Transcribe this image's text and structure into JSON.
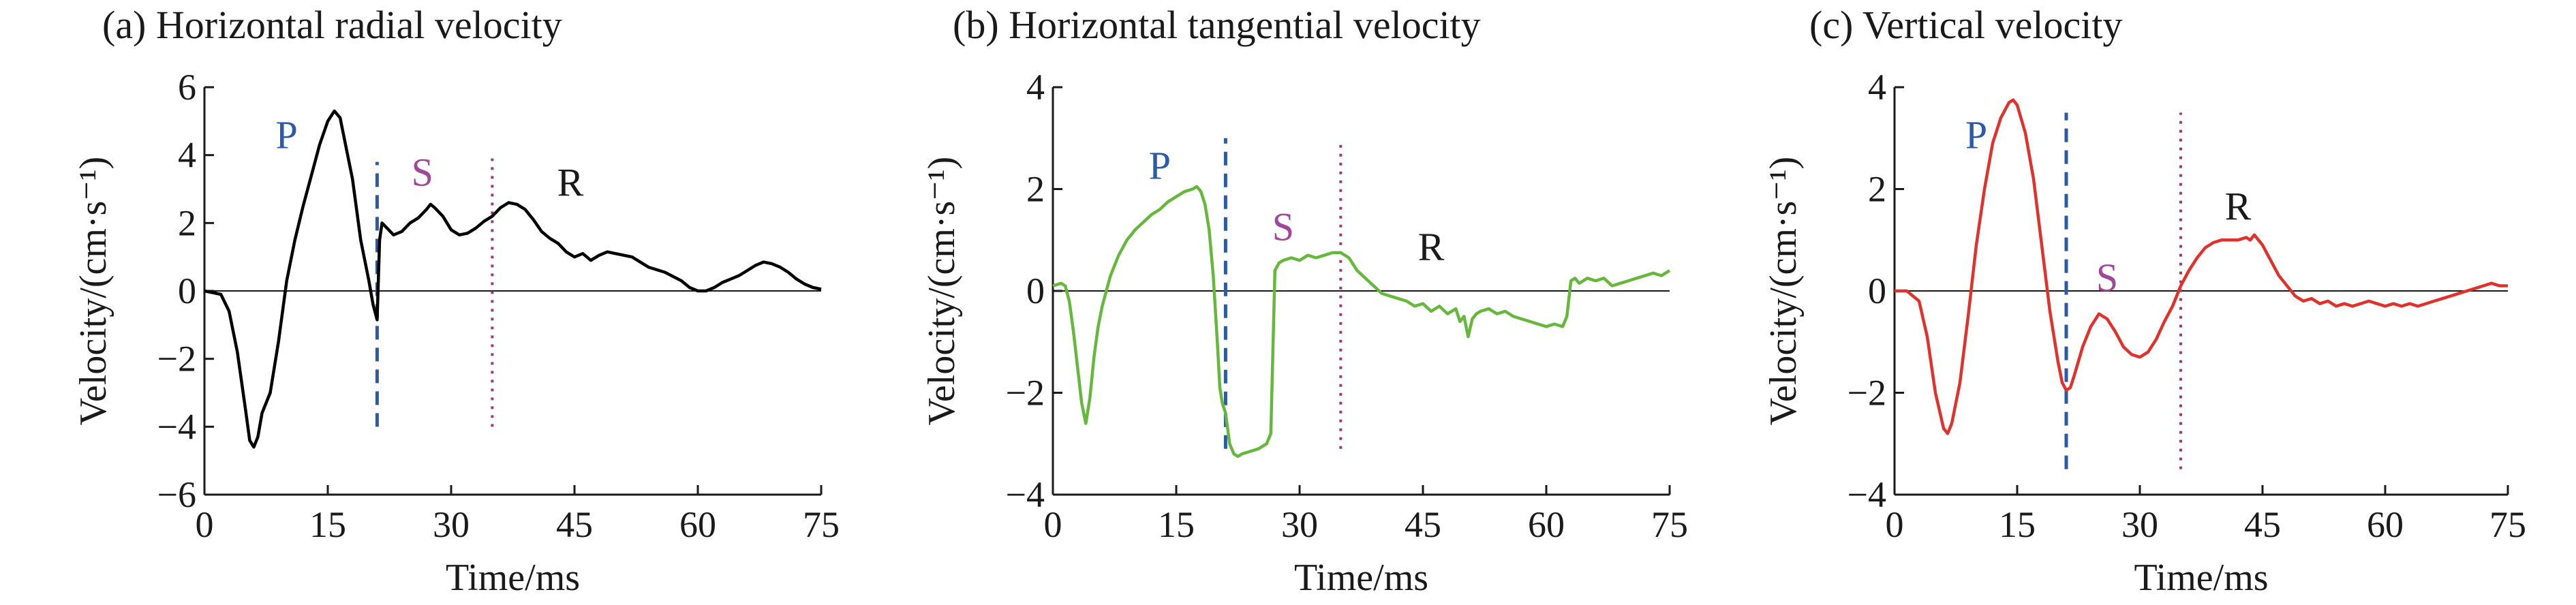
{
  "chart_data": [
    {
      "type": "line",
      "title": "(a) Horizontal radial velocity",
      "xlabel": "Time/ms",
      "ylabel": "Velocity/(cm·s⁻¹)",
      "xlim": [
        0,
        75
      ],
      "ylim": [
        -6,
        6
      ],
      "xticks": [
        0,
        15,
        30,
        45,
        60,
        75
      ],
      "yticks": [
        -6,
        -4,
        -2,
        0,
        2,
        4,
        6
      ],
      "grid": false,
      "color": "#000000",
      "series": [
        {
          "x": [
            0,
            2,
            3,
            4,
            5,
            5.5,
            6,
            6.5,
            7,
            8,
            9,
            10,
            11,
            12,
            13,
            14,
            15,
            15.8,
            16.5,
            17,
            18,
            19,
            20,
            20.5,
            21,
            21.3,
            21.6,
            22,
            23,
            24,
            25,
            26,
            27,
            27.5,
            28,
            29,
            30,
            31,
            32,
            33,
            34,
            35,
            36,
            37,
            38,
            39,
            40,
            41,
            42,
            43,
            44,
            45,
            46,
            47,
            48,
            49,
            50,
            52,
            54,
            56,
            58,
            59,
            60,
            61,
            62,
            63,
            64,
            65,
            66,
            67,
            68,
            69,
            70,
            71,
            72,
            73,
            74,
            75
          ],
          "y": [
            0,
            -0.1,
            -0.6,
            -1.8,
            -3.5,
            -4.4,
            -4.6,
            -4.3,
            -3.6,
            -3.0,
            -1.5,
            0.3,
            1.5,
            2.5,
            3.4,
            4.3,
            5.0,
            5.3,
            5.1,
            4.5,
            3.3,
            1.5,
            0.3,
            -0.4,
            -0.85,
            1.5,
            2.0,
            1.9,
            1.65,
            1.75,
            2.0,
            2.15,
            2.4,
            2.55,
            2.45,
            2.2,
            1.8,
            1.65,
            1.7,
            1.85,
            2.05,
            2.2,
            2.45,
            2.6,
            2.55,
            2.4,
            2.1,
            1.75,
            1.55,
            1.4,
            1.15,
            1.0,
            1.1,
            0.9,
            1.05,
            1.15,
            1.1,
            1.0,
            0.7,
            0.55,
            0.3,
            0.1,
            0.0,
            0.0,
            0.1,
            0.25,
            0.35,
            0.45,
            0.6,
            0.75,
            0.85,
            0.8,
            0.7,
            0.55,
            0.35,
            0.2,
            0.1,
            0.05
          ]
        }
      ],
      "wave_labels": [
        {
          "text": "P",
          "x": 10,
          "y": 4.2,
          "color": "#2b5aa6"
        },
        {
          "text": "S",
          "x": 26.5,
          "y": 3.1,
          "color": "#a0479a"
        },
        {
          "text": "R",
          "x": 44.5,
          "y": 2.8,
          "color": "#1a1a1a"
        }
      ],
      "markers": [
        {
          "x": 21,
          "y0": -4.0,
          "y1": 3.8,
          "style": "dashed",
          "color": "#2b5aa6"
        },
        {
          "x": 35,
          "y0": -4.0,
          "y1": 3.9,
          "style": "dotted",
          "color": "#a03a6a"
        }
      ]
    },
    {
      "type": "line",
      "title": "(b) Horizontal tangential velocity",
      "xlabel": "Time/ms",
      "ylabel": "Velocity/(cm·s⁻¹)",
      "xlim": [
        0,
        75
      ],
      "ylim": [
        -4,
        4
      ],
      "xticks": [
        0,
        15,
        30,
        45,
        60,
        75
      ],
      "yticks": [
        -4,
        -2,
        0,
        2,
        4
      ],
      "grid": false,
      "color": "#66b83c",
      "series": [
        {
          "x": [
            0,
            1,
            1.5,
            2,
            2.5,
            3,
            3.5,
            4,
            4.5,
            5,
            5.5,
            6,
            6.5,
            7,
            8,
            9,
            10,
            11,
            12,
            13,
            14,
            15,
            16,
            17,
            17.5,
            18,
            18.5,
            19,
            19.5,
            20,
            20.3,
            20.6,
            21,
            21.5,
            22,
            22.5,
            23,
            24,
            25,
            26,
            26.5,
            27,
            27.5,
            28,
            29,
            30,
            31,
            32,
            33,
            34,
            35,
            36,
            37,
            38,
            39,
            40,
            41,
            42,
            43,
            44,
            45,
            46,
            47,
            48,
            49,
            49.5,
            50,
            50.5,
            51,
            51.5,
            52,
            53,
            54,
            55,
            56,
            57,
            58,
            59,
            60,
            61,
            62,
            62.5,
            63,
            63.5,
            64,
            65,
            66,
            67,
            68,
            69,
            70,
            71,
            72,
            73,
            74,
            75
          ],
          "y": [
            0.1,
            0.15,
            0.1,
            -0.2,
            -0.8,
            -1.5,
            -2.2,
            -2.6,
            -2.1,
            -1.3,
            -0.7,
            -0.3,
            0.0,
            0.3,
            0.7,
            1.0,
            1.2,
            1.35,
            1.5,
            1.6,
            1.75,
            1.85,
            1.95,
            2.0,
            2.05,
            1.95,
            1.7,
            1.2,
            0.3,
            -1.0,
            -1.9,
            -2.2,
            -2.4,
            -3.0,
            -3.2,
            -3.25,
            -3.2,
            -3.15,
            -3.1,
            -3.0,
            -2.8,
            0.4,
            0.55,
            0.6,
            0.65,
            0.6,
            0.7,
            0.65,
            0.7,
            0.75,
            0.75,
            0.65,
            0.4,
            0.25,
            0.1,
            -0.05,
            -0.1,
            -0.15,
            -0.2,
            -0.3,
            -0.25,
            -0.4,
            -0.3,
            -0.45,
            -0.35,
            -0.6,
            -0.5,
            -0.9,
            -0.55,
            -0.45,
            -0.4,
            -0.35,
            -0.45,
            -0.4,
            -0.5,
            -0.55,
            -0.6,
            -0.65,
            -0.7,
            -0.65,
            -0.7,
            -0.5,
            0.2,
            0.25,
            0.15,
            0.25,
            0.2,
            0.25,
            0.1,
            0.15,
            0.2,
            0.25,
            0.3,
            0.35,
            0.3,
            0.4
          ]
        }
      ],
      "wave_labels": [
        {
          "text": "P",
          "x": 13,
          "y": 2.2,
          "color": "#2b5aa6"
        },
        {
          "text": "S",
          "x": 28,
          "y": 1.0,
          "color": "#a0479a"
        },
        {
          "text": "R",
          "x": 46,
          "y": 0.6,
          "color": "#1a1a1a"
        }
      ],
      "markers": [
        {
          "x": 21,
          "y0": -3.1,
          "y1": 3.0,
          "style": "dashed",
          "color": "#2b5aa6"
        },
        {
          "x": 35,
          "y0": -3.1,
          "y1": 2.9,
          "style": "dotted",
          "color": "#a03a6a"
        }
      ]
    },
    {
      "type": "line",
      "title": "(c) Vertical velocity",
      "xlabel": "Time/ms",
      "ylabel": "Velocity/(cm·s⁻¹)",
      "xlim": [
        0,
        75
      ],
      "ylim": [
        -4,
        4
      ],
      "xticks": [
        0,
        15,
        30,
        45,
        60,
        75
      ],
      "yticks": [
        -4,
        -2,
        0,
        2,
        4
      ],
      "grid": false,
      "color": "#e0322c",
      "series": [
        {
          "x": [
            0,
            1.5,
            3,
            4,
            5,
            6,
            6.5,
            7,
            8,
            9,
            10,
            11,
            12,
            13,
            14,
            14.5,
            15,
            16,
            17,
            18,
            19,
            20,
            20.5,
            21,
            21.5,
            22,
            23,
            24,
            25,
            26,
            27,
            28,
            29,
            30,
            31,
            32,
            33,
            34,
            35,
            36,
            37,
            38,
            39,
            40,
            41,
            42,
            43,
            43.5,
            44,
            44.5,
            45,
            46,
            47,
            48,
            49,
            50,
            51,
            52,
            53,
            54,
            55,
            56,
            57,
            58,
            59,
            60,
            61,
            62,
            63,
            64,
            65,
            66,
            67,
            68,
            69,
            70,
            71,
            72,
            73,
            74,
            75
          ],
          "y": [
            0,
            0,
            -0.2,
            -0.9,
            -2.0,
            -2.7,
            -2.8,
            -2.6,
            -1.8,
            -0.5,
            0.9,
            2.0,
            2.9,
            3.4,
            3.7,
            3.75,
            3.65,
            3.1,
            2.2,
            0.9,
            -0.4,
            -1.4,
            -1.8,
            -1.95,
            -1.9,
            -1.65,
            -1.1,
            -0.7,
            -0.45,
            -0.55,
            -0.8,
            -1.1,
            -1.25,
            -1.3,
            -1.2,
            -0.95,
            -0.6,
            -0.3,
            0.1,
            0.4,
            0.65,
            0.85,
            0.95,
            1.0,
            1.0,
            1.0,
            1.05,
            1.0,
            1.1,
            1.0,
            0.9,
            0.6,
            0.3,
            0.1,
            -0.1,
            -0.2,
            -0.15,
            -0.25,
            -0.2,
            -0.3,
            -0.25,
            -0.3,
            -0.25,
            -0.2,
            -0.25,
            -0.3,
            -0.25,
            -0.3,
            -0.25,
            -0.3,
            -0.25,
            -0.2,
            -0.15,
            -0.1,
            -0.05,
            0.0,
            0.05,
            0.1,
            0.15,
            0.1,
            0.1
          ]
        }
      ],
      "wave_labels": [
        {
          "text": "P",
          "x": 10,
          "y": 2.8,
          "color": "#2b5aa6"
        },
        {
          "text": "S",
          "x": 26,
          "y": 0.0,
          "color": "#a0479a"
        },
        {
          "text": "R",
          "x": 42,
          "y": 1.4,
          "color": "#1a1a1a"
        }
      ],
      "markers": [
        {
          "x": 21,
          "y0": -3.5,
          "y1": 3.5,
          "style": "dashed",
          "color": "#2b5aa6"
        },
        {
          "x": 35,
          "y0": -3.5,
          "y1": 3.5,
          "style": "dotted",
          "color": "#a03a6a"
        }
      ]
    }
  ]
}
